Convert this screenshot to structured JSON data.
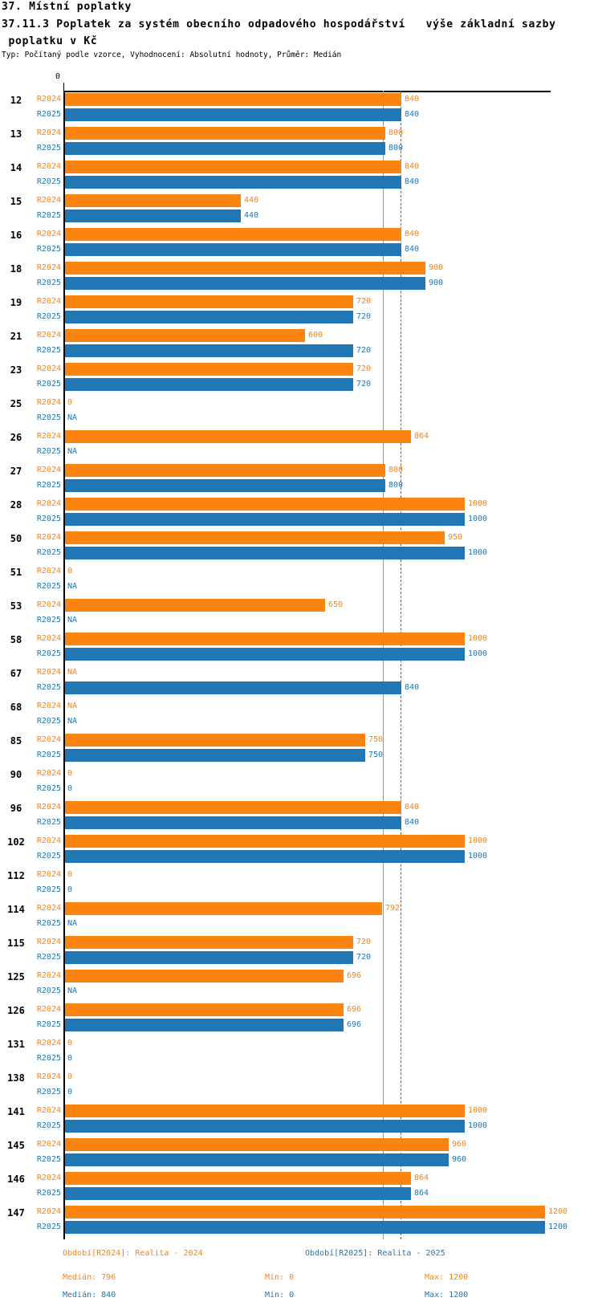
{
  "header": {
    "title_line1": "37. Místní poplatky",
    "title_line2": "37.11.3 Poplatek za systém obecního odpadového hospodářství   výše základní sazby",
    "title_line3": " poplatku v Kč",
    "meta": "Typ: Počítaný podle vzorce, Vyhodnocení: Absolutní hodnoty, Průměr: Medián"
  },
  "axis": {
    "zero_label": "0"
  },
  "colors": {
    "r2024_orange": "#FB830F",
    "r2025_blue": "#2176B4",
    "axis_black": "#000000"
  },
  "chart_data": {
    "type": "bar",
    "orientation": "horizontal",
    "title": "37.11.3 Poplatek za systém obecního odpadového hospodářství   výše základní sazby poplatku v Kč",
    "xlim": [
      0,
      1200
    ],
    "grid": false,
    "legend_position": "bottom",
    "na_text": "NA",
    "categories": [
      "12",
      "13",
      "14",
      "15",
      "16",
      "18",
      "19",
      "21",
      "23",
      "25",
      "26",
      "27",
      "28",
      "50",
      "51",
      "53",
      "58",
      "67",
      "68",
      "85",
      "90",
      "96",
      "102",
      "112",
      "114",
      "115",
      "125",
      "126",
      "131",
      "138",
      "141",
      "145",
      "146",
      "147"
    ],
    "series": [
      {
        "name": "R2024",
        "color": "#FB830F",
        "legend": "Období[R2024]: Realita - 2024",
        "median": 796,
        "min": 0,
        "max": 1200,
        "values": [
          840,
          800,
          840,
          440,
          840,
          900,
          720,
          600,
          720,
          0,
          864,
          800,
          1000,
          950,
          0,
          650,
          1000,
          null,
          null,
          750,
          0,
          840,
          1000,
          0,
          792,
          720,
          696,
          696,
          0,
          0,
          1000,
          960,
          864,
          1200
        ]
      },
      {
        "name": "R2025",
        "color": "#2176B4",
        "legend": "Období[R2025]: Realita - 2025",
        "median": 840,
        "min": 0,
        "max": 1200,
        "values": [
          840,
          800,
          840,
          440,
          840,
          900,
          720,
          720,
          720,
          null,
          null,
          800,
          1000,
          1000,
          null,
          null,
          1000,
          840,
          null,
          750,
          0,
          840,
          1000,
          0,
          null,
          720,
          null,
          696,
          0,
          0,
          1000,
          960,
          864,
          1200
        ]
      }
    ],
    "reference_lines": [
      {
        "series": "R2024",
        "value": 796,
        "style": "solid"
      },
      {
        "series": "R2025",
        "value": 840,
        "style": "dashed"
      }
    ]
  },
  "footer": {
    "legend": [
      "Období[R2024]: Realita - 2024",
      "Období[R2025]: Realita - 2025"
    ],
    "stats": [
      {
        "median": "Medián: 796",
        "min": "Min: 0",
        "max": "Max: 1200"
      },
      {
        "median": "Medián: 840",
        "min": "Min: 0",
        "max": "Max: 1200"
      }
    ]
  }
}
